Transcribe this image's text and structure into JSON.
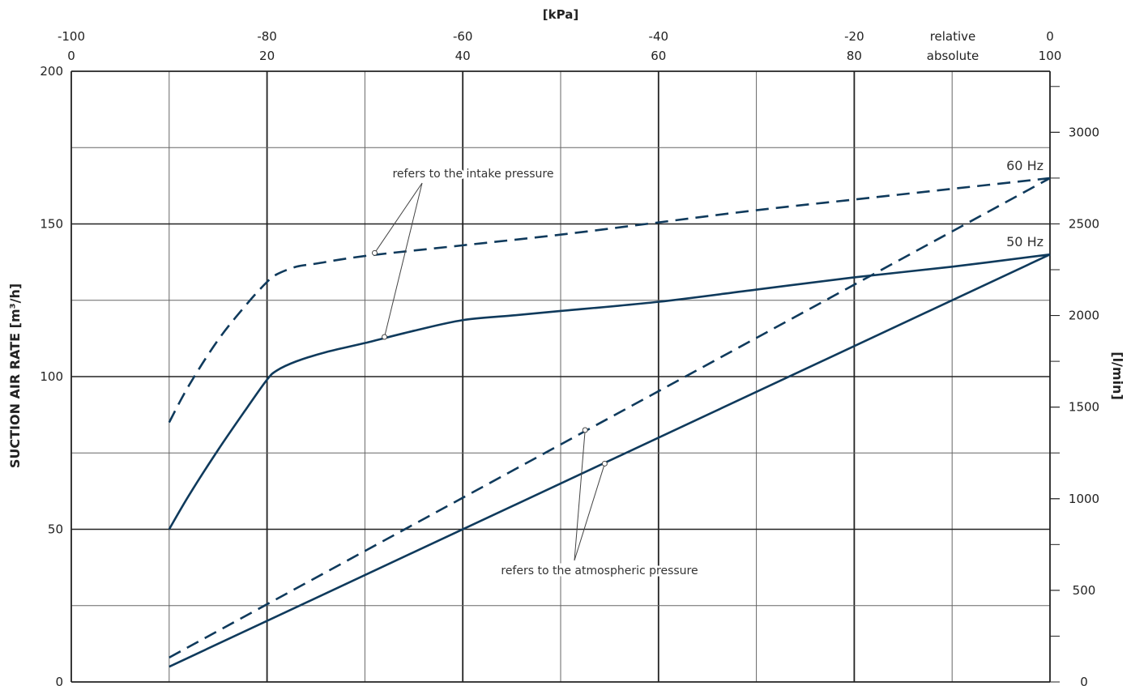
{
  "chart_data": {
    "type": "line",
    "title": "[kPa]",
    "ylabel": "SUCTION AIR RATE [m³/h]",
    "y2label": "[l/min]",
    "ylim": [
      0,
      200
    ],
    "y2lim": [
      0,
      3333
    ],
    "x_relative_label": "relative",
    "x_absolute_label": "absolute",
    "xlim_absolute": [
      0,
      100
    ],
    "xticks_relative": [
      "-100",
      "-80",
      "-60",
      "-40",
      "-20",
      "0"
    ],
    "xticks_absolute": [
      "0",
      "20",
      "40",
      "60",
      "80",
      "100"
    ],
    "xticks_absolute_values": [
      0,
      20,
      40,
      60,
      80,
      100
    ],
    "yticks": [
      0,
      50,
      100,
      150,
      200
    ],
    "y2ticks": [
      0,
      500,
      1000,
      1500,
      2000,
      2500,
      3000
    ],
    "grid": true,
    "series": [
      {
        "name": "60 Hz",
        "style": "dashed",
        "color": "#0f3a5c",
        "reference": "intake",
        "x": [
          10,
          12,
          15,
          18,
          20,
          21,
          23,
          25,
          30,
          40,
          50,
          60,
          70,
          80,
          90,
          100
        ],
        "y": [
          85,
          97,
          112,
          124,
          131,
          133.5,
          136,
          137,
          139.5,
          143,
          146.5,
          150.5,
          154.5,
          158,
          161.5,
          165
        ]
      },
      {
        "name": "50 Hz",
        "style": "solid",
        "color": "#0f3a5c",
        "reference": "intake",
        "x": [
          10,
          12,
          15,
          18,
          20,
          21,
          23,
          26,
          30,
          35,
          40,
          45,
          50,
          60,
          70,
          80,
          90,
          100
        ],
        "y": [
          50,
          61,
          76,
          90,
          99,
          102,
          105,
          108,
          111,
          115,
          118.5,
          120,
          121.5,
          124.5,
          128.5,
          132.5,
          136,
          140
        ]
      },
      {
        "name": "60 Hz",
        "style": "dashed",
        "color": "#0f3a5c",
        "reference": "atmospheric",
        "x": [
          10,
          100
        ],
        "y": [
          8,
          165
        ]
      },
      {
        "name": "50 Hz",
        "style": "solid",
        "color": "#0f3a5c",
        "reference": "atmospheric",
        "x": [
          10,
          100
        ],
        "y": [
          5,
          140
        ]
      }
    ],
    "annotations": [
      {
        "text": "refers to the intake pressure",
        "targets": [
          [
            31,
            140.5
          ],
          [
            32,
            113
          ]
        ]
      },
      {
        "text": "refers to the atmospheric pressure",
        "targets": [
          [
            52.5,
            82.5
          ],
          [
            54.5,
            71.5
          ]
        ]
      }
    ],
    "series_labels": [
      {
        "text": "60 Hz",
        "at": [
          100,
          165
        ]
      },
      {
        "text": "50 Hz",
        "at": [
          100,
          140
        ]
      }
    ]
  }
}
